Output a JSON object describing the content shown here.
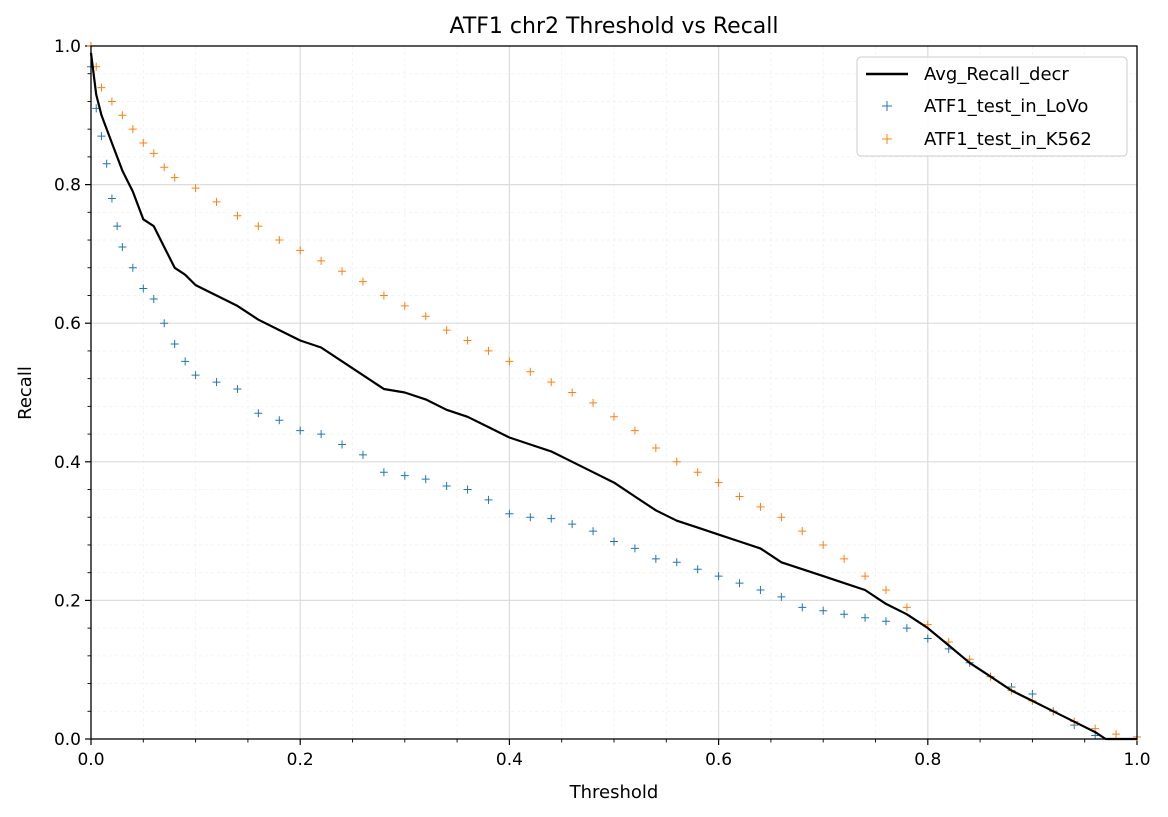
{
  "chart_data": {
    "type": "line",
    "title": "ATF1 chr2 Threshold vs Recall",
    "xlabel": "Threshold",
    "ylabel": "Recall",
    "xlim": [
      0,
      1
    ],
    "ylim": [
      0,
      1
    ],
    "xticks": [
      "0.0",
      "0.2",
      "0.4",
      "0.6",
      "0.8",
      "1.0"
    ],
    "yticks": [
      "0.0",
      "0.2",
      "0.4",
      "0.6",
      "0.8",
      "1.0"
    ],
    "grid": true,
    "legend_position": "top-right",
    "series": [
      {
        "name": "Avg_Recall_decr",
        "style": "line",
        "color": "#000000",
        "points": [
          [
            0.0,
            0.99
          ],
          [
            0.005,
            0.93
          ],
          [
            0.01,
            0.9
          ],
          [
            0.02,
            0.86
          ],
          [
            0.03,
            0.82
          ],
          [
            0.04,
            0.79
          ],
          [
            0.05,
            0.75
          ],
          [
            0.06,
            0.74
          ],
          [
            0.07,
            0.71
          ],
          [
            0.08,
            0.68
          ],
          [
            0.09,
            0.67
          ],
          [
            0.1,
            0.655
          ],
          [
            0.12,
            0.64
          ],
          [
            0.14,
            0.625
          ],
          [
            0.16,
            0.605
          ],
          [
            0.18,
            0.59
          ],
          [
            0.2,
            0.575
          ],
          [
            0.22,
            0.565
          ],
          [
            0.24,
            0.545
          ],
          [
            0.26,
            0.525
          ],
          [
            0.28,
            0.505
          ],
          [
            0.3,
            0.5
          ],
          [
            0.32,
            0.49
          ],
          [
            0.34,
            0.475
          ],
          [
            0.36,
            0.465
          ],
          [
            0.38,
            0.45
          ],
          [
            0.4,
            0.435
          ],
          [
            0.42,
            0.425
          ],
          [
            0.44,
            0.415
          ],
          [
            0.46,
            0.4
          ],
          [
            0.48,
            0.385
          ],
          [
            0.5,
            0.37
          ],
          [
            0.52,
            0.35
          ],
          [
            0.54,
            0.33
          ],
          [
            0.56,
            0.315
          ],
          [
            0.58,
            0.305
          ],
          [
            0.6,
            0.295
          ],
          [
            0.62,
            0.285
          ],
          [
            0.64,
            0.275
          ],
          [
            0.66,
            0.255
          ],
          [
            0.68,
            0.245
          ],
          [
            0.7,
            0.235
          ],
          [
            0.72,
            0.225
          ],
          [
            0.74,
            0.215
          ],
          [
            0.76,
            0.195
          ],
          [
            0.78,
            0.18
          ],
          [
            0.8,
            0.16
          ],
          [
            0.82,
            0.135
          ],
          [
            0.84,
            0.11
          ],
          [
            0.86,
            0.09
          ],
          [
            0.88,
            0.07
          ],
          [
            0.9,
            0.055
          ],
          [
            0.92,
            0.04
          ],
          [
            0.94,
            0.025
          ],
          [
            0.96,
            0.01
          ],
          [
            0.97,
            0.0
          ],
          [
            1.0,
            0.0
          ]
        ]
      },
      {
        "name": "ATF1_test_in_LoVo",
        "style": "marker",
        "color": "#1f77b4",
        "points": [
          [
            0.0,
            0.97
          ],
          [
            0.005,
            0.91
          ],
          [
            0.01,
            0.87
          ],
          [
            0.015,
            0.83
          ],
          [
            0.02,
            0.78
          ],
          [
            0.025,
            0.74
          ],
          [
            0.03,
            0.71
          ],
          [
            0.04,
            0.68
          ],
          [
            0.05,
            0.65
          ],
          [
            0.06,
            0.635
          ],
          [
            0.07,
            0.6
          ],
          [
            0.08,
            0.57
          ],
          [
            0.09,
            0.545
          ],
          [
            0.1,
            0.525
          ],
          [
            0.12,
            0.515
          ],
          [
            0.14,
            0.505
          ],
          [
            0.16,
            0.47
          ],
          [
            0.18,
            0.46
          ],
          [
            0.2,
            0.445
          ],
          [
            0.22,
            0.44
          ],
          [
            0.24,
            0.425
          ],
          [
            0.26,
            0.41
          ],
          [
            0.28,
            0.385
          ],
          [
            0.3,
            0.38
          ],
          [
            0.32,
            0.375
          ],
          [
            0.34,
            0.365
          ],
          [
            0.36,
            0.36
          ],
          [
            0.38,
            0.345
          ],
          [
            0.4,
            0.325
          ],
          [
            0.42,
            0.32
          ],
          [
            0.44,
            0.318
          ],
          [
            0.46,
            0.31
          ],
          [
            0.48,
            0.3
          ],
          [
            0.5,
            0.285
          ],
          [
            0.52,
            0.275
          ],
          [
            0.54,
            0.26
          ],
          [
            0.56,
            0.255
          ],
          [
            0.58,
            0.245
          ],
          [
            0.6,
            0.235
          ],
          [
            0.62,
            0.225
          ],
          [
            0.64,
            0.215
          ],
          [
            0.66,
            0.205
          ],
          [
            0.68,
            0.19
          ],
          [
            0.7,
            0.185
          ],
          [
            0.72,
            0.18
          ],
          [
            0.74,
            0.175
          ],
          [
            0.76,
            0.17
          ],
          [
            0.78,
            0.16
          ],
          [
            0.8,
            0.145
          ],
          [
            0.82,
            0.13
          ],
          [
            0.84,
            0.11
          ],
          [
            0.86,
            0.09
          ],
          [
            0.88,
            0.075
          ],
          [
            0.9,
            0.065
          ],
          [
            0.92,
            0.04
          ],
          [
            0.94,
            0.02
          ],
          [
            0.96,
            0.005
          ]
        ]
      },
      {
        "name": "ATF1_test_in_K562",
        "style": "marker",
        "color": "#ff7f0e",
        "points": [
          [
            0.0,
            1.0
          ],
          [
            0.005,
            0.97
          ],
          [
            0.01,
            0.94
          ],
          [
            0.02,
            0.92
          ],
          [
            0.03,
            0.9
          ],
          [
            0.04,
            0.88
          ],
          [
            0.05,
            0.86
          ],
          [
            0.06,
            0.845
          ],
          [
            0.07,
            0.825
          ],
          [
            0.08,
            0.81
          ],
          [
            0.1,
            0.795
          ],
          [
            0.12,
            0.775
          ],
          [
            0.14,
            0.755
          ],
          [
            0.16,
            0.74
          ],
          [
            0.18,
            0.72
          ],
          [
            0.2,
            0.705
          ],
          [
            0.22,
            0.69
          ],
          [
            0.24,
            0.675
          ],
          [
            0.26,
            0.66
          ],
          [
            0.28,
            0.64
          ],
          [
            0.3,
            0.625
          ],
          [
            0.32,
            0.61
          ],
          [
            0.34,
            0.59
          ],
          [
            0.36,
            0.575
          ],
          [
            0.38,
            0.56
          ],
          [
            0.4,
            0.545
          ],
          [
            0.42,
            0.53
          ],
          [
            0.44,
            0.515
          ],
          [
            0.46,
            0.5
          ],
          [
            0.48,
            0.485
          ],
          [
            0.5,
            0.465
          ],
          [
            0.52,
            0.445
          ],
          [
            0.54,
            0.42
          ],
          [
            0.56,
            0.4
          ],
          [
            0.58,
            0.385
          ],
          [
            0.6,
            0.37
          ],
          [
            0.62,
            0.35
          ],
          [
            0.64,
            0.335
          ],
          [
            0.66,
            0.32
          ],
          [
            0.68,
            0.3
          ],
          [
            0.7,
            0.28
          ],
          [
            0.72,
            0.26
          ],
          [
            0.74,
            0.235
          ],
          [
            0.76,
            0.215
          ],
          [
            0.78,
            0.19
          ],
          [
            0.8,
            0.165
          ],
          [
            0.82,
            0.14
          ],
          [
            0.84,
            0.115
          ],
          [
            0.86,
            0.09
          ],
          [
            0.88,
            0.07
          ],
          [
            0.9,
            0.055
          ],
          [
            0.92,
            0.04
          ],
          [
            0.94,
            0.025
          ],
          [
            0.96,
            0.015
          ],
          [
            0.98,
            0.007
          ],
          [
            1.0,
            0.003
          ]
        ]
      }
    ]
  }
}
